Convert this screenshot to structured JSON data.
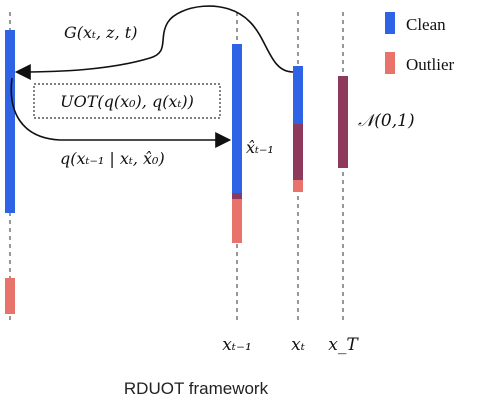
{
  "legend": {
    "items": [
      {
        "label": "Clean",
        "color": "#2f63e6"
      },
      {
        "label": "Outlier",
        "color": "#e8736a"
      }
    ]
  },
  "colors": {
    "clean": "#2f63e6",
    "outlier": "#e8736a",
    "mixed": "#8e3a5c",
    "arrow": "#111111",
    "dashed": "#555555"
  },
  "labels": {
    "generator": "G(xₜ, z, t)",
    "uot": "UOT(q(x₀), q(xₜ))",
    "posterior": "q(xₜ₋₁ | xₜ, x̂₀)",
    "x_hat": "x̂ₜ₋₁",
    "normal": "𝒩(0,1)",
    "axis_x_t_minus_1": "xₜ₋₁",
    "axis_x_t": "xₜ",
    "axis_x_T": "x_T"
  },
  "caption": "RDUOT framework"
}
